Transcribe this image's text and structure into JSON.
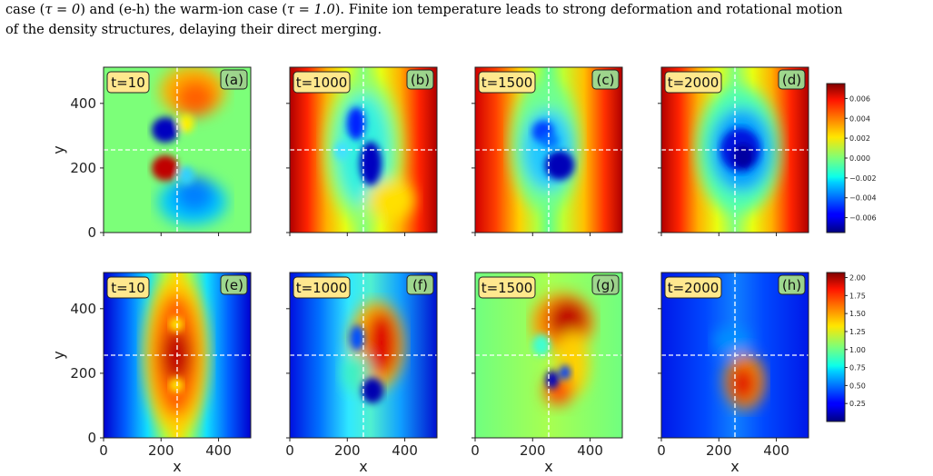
{
  "caption": {
    "line1_a": "case (",
    "line1_tau1": "τ = 0",
    "line1_b": ") and (e-h) the warm-ion case (",
    "line1_tau2": "τ = 1.0",
    "line1_c": "). Finite ion temperature leads to strong deformation and rotational motion",
    "line2": "of the density structures, delaying their direct merging."
  },
  "colormap": "jet",
  "chart_data": [
    {
      "type": "heatmap",
      "row": "top",
      "xlabel": "",
      "ylabel": "y",
      "xlim": [
        0,
        512
      ],
      "ylim": [
        0,
        512
      ],
      "y_ticks": [
        "0",
        "200",
        "400"
      ],
      "x_ticks": [],
      "crosshair": {
        "x": 256,
        "y": 256
      },
      "colorbar": {
        "range": [
          -0.0075,
          0.0075
        ],
        "ticks": [
          "−0.006",
          "−0.004",
          "−0.002",
          "0.000",
          "0.002",
          "0.004",
          "0.006"
        ],
        "tick_values": [
          -0.006,
          -0.004,
          -0.002,
          0.0,
          0.002,
          0.004,
          0.006
        ]
      },
      "panels": [
        {
          "label": "(a)",
          "time": "t=10"
        },
        {
          "label": "(b)",
          "time": "t=1000"
        },
        {
          "label": "(c)",
          "time": "t=1500"
        },
        {
          "label": "(d)",
          "time": "t=2000"
        }
      ]
    },
    {
      "type": "heatmap",
      "row": "bottom",
      "xlabel": "x",
      "ylabel": "y",
      "xlim": [
        0,
        512
      ],
      "ylim": [
        0,
        512
      ],
      "y_ticks": [
        "0",
        "200",
        "400"
      ],
      "x_ticks": [
        "0",
        "200",
        "400"
      ],
      "crosshair": {
        "x": 256,
        "y": 256
      },
      "colorbar": {
        "range": [
          0.0,
          2.07
        ],
        "ticks": [
          "0.25",
          "0.50",
          "0.75",
          "1.00",
          "1.25",
          "1.50",
          "1.75",
          "2.00"
        ],
        "tick_values": [
          0.25,
          0.5,
          0.75,
          1.0,
          1.25,
          1.5,
          1.75,
          2.0
        ]
      },
      "panels": [
        {
          "label": "(e)",
          "time": "t=10"
        },
        {
          "label": "(f)",
          "time": "t=1000"
        },
        {
          "label": "(g)",
          "time": "t=1500"
        },
        {
          "label": "(h)",
          "time": "t=2000"
        }
      ]
    }
  ]
}
